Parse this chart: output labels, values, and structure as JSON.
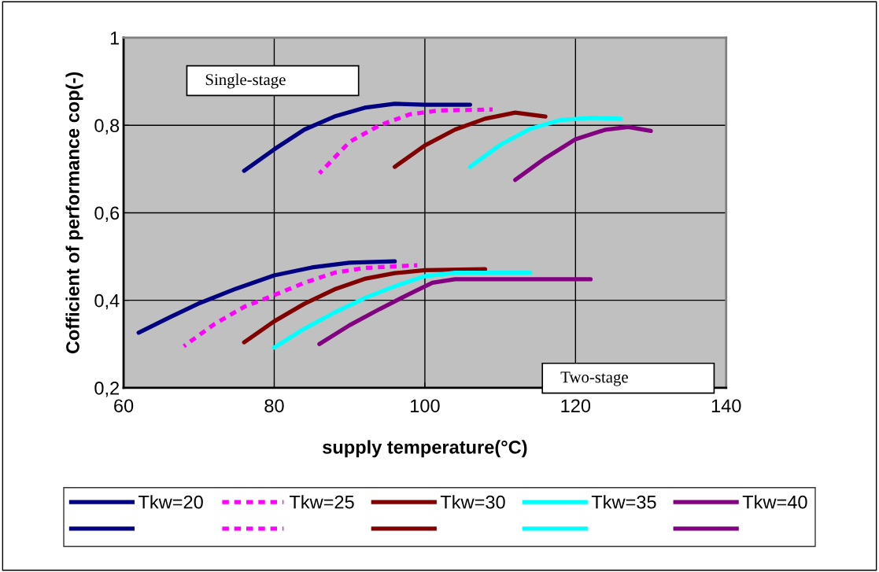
{
  "chart_data": {
    "type": "line",
    "xlabel": "supply temperature(°C)",
    "ylabel": "Cofficient of performance cop(-)",
    "xlim": [
      60,
      140
    ],
    "xticks": [
      60,
      80,
      100,
      120,
      140
    ],
    "ylim": [
      0.2,
      1
    ],
    "yticks": [
      {
        "value": 0.2,
        "label": "0,2"
      },
      {
        "value": 0.4,
        "label": "0,4"
      },
      {
        "value": 0.6,
        "label": "0,6"
      },
      {
        "value": 0.8,
        "label": "0,8"
      },
      {
        "value": 1,
        "label": "1"
      }
    ],
    "grid": true,
    "legend": "bottom",
    "marker": "none",
    "annotations": [
      "Single-stage",
      "Two-stage"
    ],
    "series": [
      {
        "name": "Tkw=20",
        "color": "#000080",
        "line_style": "solid",
        "x": [
          76,
          80,
          84,
          88,
          92,
          96,
          100,
          106
        ],
        "values": [
          0.696,
          0.745,
          0.79,
          0.82,
          0.84,
          0.849,
          0.847,
          0.847
        ]
      },
      {
        "color": "#000080",
        "line_style": "solid",
        "x": [
          62,
          66,
          70,
          75,
          80,
          85,
          90,
          96
        ],
        "values": [
          0.326,
          0.36,
          0.393,
          0.427,
          0.457,
          0.475,
          0.486,
          0.489
        ]
      },
      {
        "name": "Tkw=25",
        "color": "#ff00ff",
        "line_style": "dashed",
        "x": [
          86,
          90,
          94,
          98,
          102,
          109
        ],
        "values": [
          0.69,
          0.762,
          0.8,
          0.825,
          0.834,
          0.836
        ]
      },
      {
        "color": "#ff00ff",
        "line_style": "dashed",
        "x": [
          68,
          72,
          76,
          80,
          84,
          88,
          92,
          99
        ],
        "values": [
          0.295,
          0.345,
          0.385,
          0.412,
          0.44,
          0.463,
          0.474,
          0.48
        ]
      },
      {
        "name": "Tkw=30",
        "color": "#800000",
        "line_style": "solid",
        "x": [
          96,
          100,
          104,
          108,
          112,
          116
        ],
        "values": [
          0.705,
          0.754,
          0.79,
          0.815,
          0.829,
          0.82
        ]
      },
      {
        "color": "#800000",
        "line_style": "solid",
        "x": [
          76,
          80,
          84,
          88,
          92,
          96,
          100,
          108
        ],
        "values": [
          0.304,
          0.352,
          0.392,
          0.425,
          0.449,
          0.462,
          0.469,
          0.471
        ]
      },
      {
        "name": "Tkw=35",
        "color": "#00ffff",
        "line_style": "solid",
        "x": [
          106,
          110,
          114,
          118,
          122,
          126
        ],
        "values": [
          0.705,
          0.755,
          0.792,
          0.812,
          0.817,
          0.815
        ]
      },
      {
        "color": "#00ffff",
        "line_style": "solid",
        "x": [
          80,
          84,
          88,
          92,
          96,
          100,
          104,
          114
        ],
        "values": [
          0.292,
          0.335,
          0.372,
          0.405,
          0.432,
          0.455,
          0.463,
          0.463
        ]
      },
      {
        "name": "Tkw=40",
        "color": "#800080",
        "line_style": "solid",
        "x": [
          112,
          116,
          120,
          124,
          127,
          130
        ],
        "values": [
          0.675,
          0.725,
          0.768,
          0.79,
          0.796,
          0.787
        ]
      },
      {
        "color": "#800080",
        "line_style": "solid",
        "x": [
          86,
          90,
          94,
          98,
          101,
          104,
          122
        ],
        "values": [
          0.3,
          0.343,
          0.38,
          0.415,
          0.44,
          0.448,
          0.448
        ]
      }
    ]
  }
}
